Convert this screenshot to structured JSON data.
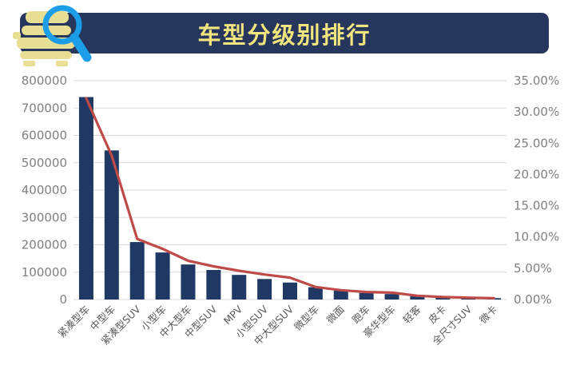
{
  "header": {
    "title": "车型分级别排行"
  },
  "colors": {
    "background": "#FFFFFF",
    "banner": "#27365C",
    "title_text": "#F2E57E",
    "bar": "#1F3864",
    "line": "#BE4B48",
    "grid": "#D9D9D9",
    "axis_text": "#808080",
    "category_text": "#595959",
    "car_icon": "#E9DF94",
    "magnifier_icon": "#1C9DE8"
  },
  "chart_data": {
    "type": "bar",
    "combo": "bar+line",
    "title": "车型分级别排行",
    "grid": true,
    "legend": false,
    "categories": [
      "紧凑型车",
      "中型车",
      "紧凑型SUV",
      "小型车",
      "中大型车",
      "中型SUV",
      "MPV",
      "小型SUV",
      "中大型SUV",
      "微型车",
      "微面",
      "跑车",
      "豪华型车",
      "轻客",
      "皮卡",
      "全尺寸SUV",
      "微卡"
    ],
    "series": [
      {
        "type": "bar",
        "axis": "left",
        "values": [
          740000,
          545000,
          210000,
          172000,
          128000,
          108000,
          90000,
          75000,
          62000,
          45000,
          32000,
          24000,
          20000,
          14000,
          9000,
          7000,
          5000
        ]
      },
      {
        "type": "line",
        "axis": "right",
        "values_percent": [
          32.2,
          23.0,
          9.7,
          8.1,
          6.2,
          5.3,
          4.6,
          4.0,
          3.5,
          2.0,
          1.5,
          1.2,
          1.1,
          0.6,
          0.4,
          0.3,
          0.2
        ]
      }
    ],
    "left_axis": {
      "min": 0,
      "max": 800000,
      "step": 100000,
      "tick_labels_top_to_bottom": [
        "800000",
        "700000",
        "600000",
        "500000",
        "400000",
        "300000",
        "200000",
        "100000",
        "0"
      ]
    },
    "right_axis": {
      "min": 0,
      "max": 35,
      "step": 5,
      "tick_labels_top_to_bottom": [
        "35.00%",
        "30.00%",
        "25.00%",
        "20.00%",
        "15.00%",
        "10.00%",
        "5.00%",
        "0.00%"
      ]
    }
  }
}
